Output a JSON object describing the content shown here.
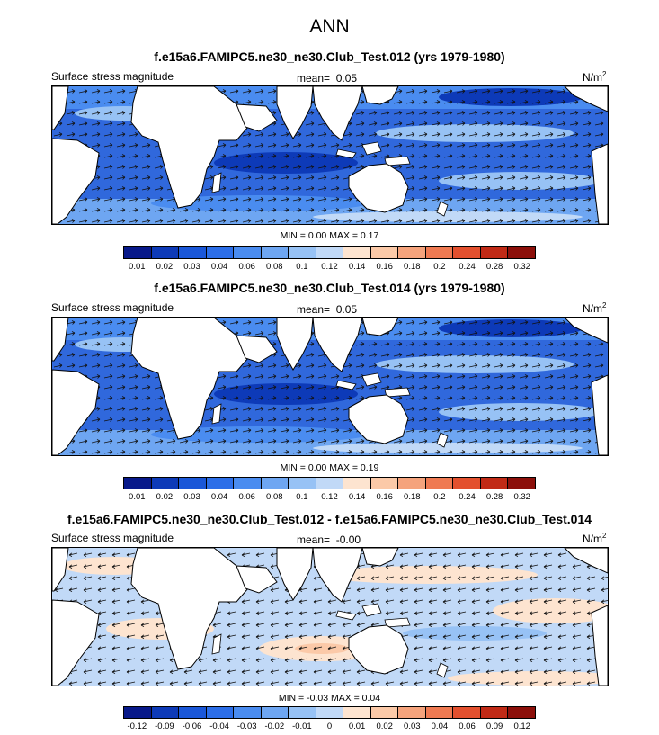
{
  "title": "ANN",
  "units_base": "N/m",
  "units_exp": "2",
  "panels": [
    {
      "title": "f.e15a6.FAMIPC5.ne30_ne30.Club_Test.012 (yrs 1979-1980)",
      "variable": "Surface stress magnitude",
      "mean_label": "mean=",
      "mean": "0.05",
      "minmax": "MIN =  0.00 MAX =  0.17",
      "colorbar": {
        "colors": [
          "#08198a",
          "#0d3ab8",
          "#1a57d8",
          "#2c6ee8",
          "#4a8cf0",
          "#6ea6f2",
          "#97c2f5",
          "#c1d9f7",
          "#fde4d0",
          "#fbc9a8",
          "#f5a37c",
          "#ef7a52",
          "#e3502e",
          "#c12a16",
          "#8c0f0a"
        ],
        "ticks": [
          "0.01",
          "0.02",
          "0.03",
          "0.04",
          "0.06",
          "0.08",
          "0.1",
          "0.12",
          "0.14",
          "0.16",
          "0.18",
          "0.2",
          "0.24",
          "0.28",
          "0.32"
        ]
      }
    },
    {
      "title": "f.e15a6.FAMIPC5.ne30_ne30.Club_Test.014 (yrs 1979-1980)",
      "variable": "Surface stress magnitude",
      "mean_label": "mean=",
      "mean": "0.05",
      "minmax": "MIN =  0.00 MAX =  0.19",
      "colorbar": {
        "colors": [
          "#08198a",
          "#0d3ab8",
          "#1a57d8",
          "#2c6ee8",
          "#4a8cf0",
          "#6ea6f2",
          "#97c2f5",
          "#c1d9f7",
          "#fde4d0",
          "#fbc9a8",
          "#f5a37c",
          "#ef7a52",
          "#e3502e",
          "#c12a16",
          "#8c0f0a"
        ],
        "ticks": [
          "0.01",
          "0.02",
          "0.03",
          "0.04",
          "0.06",
          "0.08",
          "0.1",
          "0.12",
          "0.14",
          "0.16",
          "0.18",
          "0.2",
          "0.24",
          "0.28",
          "0.32"
        ]
      }
    },
    {
      "title": "f.e15a6.FAMIPC5.ne30_ne30.Club_Test.012 - f.e15a6.FAMIPC5.ne30_ne30.Club_Test.014",
      "variable": "Surface stress magnitude",
      "mean_label": "mean=",
      "mean": "-0.00",
      "minmax": "MIN = -0.03 MAX =  0.04",
      "colorbar": {
        "colors": [
          "#08198a",
          "#0d3ab8",
          "#1a57d8",
          "#2c6ee8",
          "#4a8cf0",
          "#6ea6f2",
          "#97c2f5",
          "#c1d9f7",
          "#fde4d0",
          "#fbc9a8",
          "#f5a37c",
          "#ef7a52",
          "#e3502e",
          "#c12a16",
          "#8c0f0a"
        ],
        "ticks": [
          "-0.12",
          "-0.09",
          "-0.06",
          "-0.04",
          "-0.03",
          "-0.02",
          "-0.01",
          "0",
          "0.01",
          "0.02",
          "0.03",
          "0.04",
          "0.06",
          "0.09",
          "0.12"
        ]
      }
    }
  ]
}
